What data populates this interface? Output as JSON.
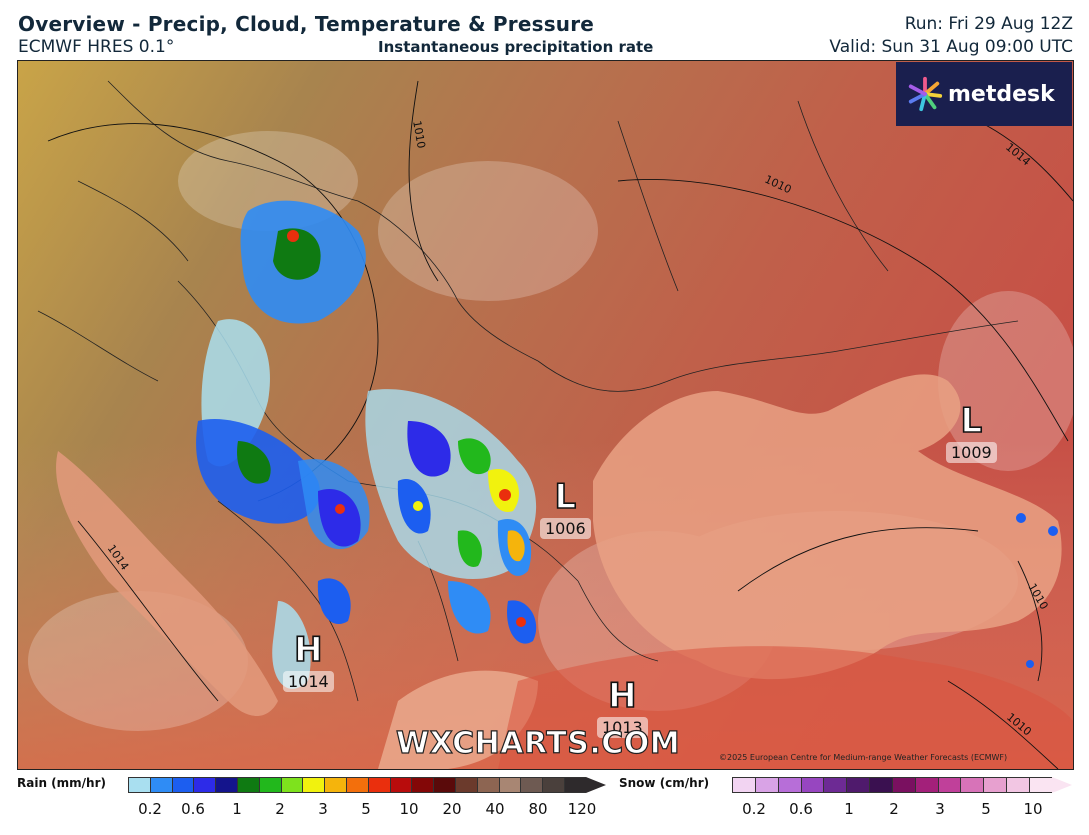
{
  "header": {
    "title": "Overview - Precip, Cloud, Temperature & Pressure",
    "model": "ECMWF HRES 0.1°",
    "subtitle": "Instantaneous precipitation rate",
    "run": "Run: Fri 29 Aug 12Z",
    "valid": "Valid: Sun 31 Aug 09:00 UTC"
  },
  "logo": {
    "text": "metdesk",
    "icon": "metdesk-flower-icon"
  },
  "map": {
    "watermark": "WXCHARTS.COM",
    "copyright": "©2025 European Centre for Medium-range Weather Forecasts (ECMWF)",
    "pressure_systems": [
      {
        "type": "L",
        "value": "1006"
      },
      {
        "type": "L",
        "value": "1009"
      },
      {
        "type": "H",
        "value": "1014"
      },
      {
        "type": "H",
        "value": "1013"
      }
    ],
    "isobar_labels": [
      "1010",
      "1014",
      "1010",
      "1014",
      "1010",
      "1010"
    ]
  },
  "legend": {
    "rain": {
      "label": "Rain (mm/hr)",
      "ticks": [
        "0.2",
        "0.6",
        "1",
        "2",
        "3",
        "5",
        "10",
        "20",
        "40",
        "80",
        "120"
      ],
      "colors": [
        "#a9dff0",
        "#2f8cf5",
        "#1c5ef0",
        "#2d2be8",
        "#14148c",
        "#0f7a12",
        "#22b81c",
        "#7ee21d",
        "#f1f20e",
        "#f5b40c",
        "#f36f0c",
        "#ea2f0d",
        "#b80c0c",
        "#830707",
        "#5a0a0a",
        "#6b3a2c",
        "#8d6552",
        "#a88673",
        "#6e5a52",
        "#4a403c",
        "#2e2a2c"
      ]
    },
    "snow": {
      "label": "Snow (cm/hr)",
      "ticks": [
        "0.2",
        "0.6",
        "1",
        "2",
        "3",
        "5",
        "10"
      ],
      "colors": [
        "#f2d4f2",
        "#d9a3e6",
        "#b76ed8",
        "#9746c0",
        "#6d2a94",
        "#4f1a6c",
        "#3a1050",
        "#7a1060",
        "#a3207a",
        "#c0409a",
        "#d773b8",
        "#e7a0cf",
        "#f2c6e3",
        "#fae4f2"
      ]
    }
  }
}
